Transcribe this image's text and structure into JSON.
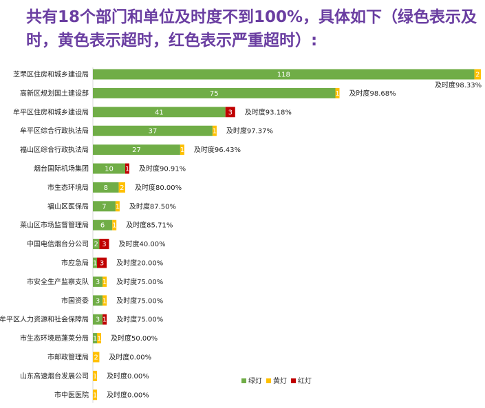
{
  "title": "共有18个部门和单位及时度不到100%，具体如下（绿色表示及时，黄色表示超时，红色表示严重超时）:",
  "colors": {
    "green": "#70ad47",
    "yellow": "#ffc000",
    "red": "#c00000"
  },
  "chart_data": {
    "type": "bar",
    "orientation": "horizontal",
    "stacked": true,
    "categories": [
      "芝罘区住房和城乡建设局",
      "高新区规划国土建设部",
      "牟平区住房和城乡建设局",
      "牟平区综合行政执法局",
      "福山区综合行政执法局",
      "烟台国际机场集团",
      "市生态环境局",
      "福山区医保局",
      "莱山区市场监督管理局",
      "中国电信烟台分公司",
      "市应急局",
      "市安全生产监察支队",
      "市国资委",
      "牟平区人力资源和社会保障局",
      "市生态环境局蓬莱分局",
      "市邮政管理局",
      "山东高速烟台发展公司",
      "市中医医院"
    ],
    "series": [
      {
        "name": "绿灯",
        "color": "#70ad47",
        "values": [
          118,
          75,
          41,
          37,
          27,
          10,
          8,
          7,
          6,
          2,
          1,
          3,
          3,
          3,
          1,
          0,
          0,
          0
        ]
      },
      {
        "name": "黄灯",
        "color": "#ffc000",
        "values": [
          2,
          1,
          0,
          1,
          1,
          0,
          2,
          1,
          1,
          0,
          0,
          1,
          1,
          0,
          1,
          2,
          1,
          1
        ]
      },
      {
        "name": "红灯",
        "color": "#c00000",
        "values": [
          0,
          0,
          3,
          0,
          0,
          1,
          0,
          0,
          0,
          3,
          3,
          0,
          0,
          1,
          0,
          0,
          0,
          0
        ]
      }
    ],
    "labels": [
      "及时度98.33%",
      "及时度98.68%",
      "及时度93.18%",
      "及时度97.37%",
      "及时度96.43%",
      "及时度90.91%",
      "及时度80.00%",
      "及时度87.50%",
      "及时度85.71%",
      "及时度40.00%",
      "及时度20.00%",
      "及时度75.00%",
      "及时度75.00%",
      "及时度75.00%",
      "及时度50.00%",
      "及时度0.00%",
      "及时度0.00%",
      "及时度0.00%"
    ],
    "legend_position": "bottom-right"
  }
}
